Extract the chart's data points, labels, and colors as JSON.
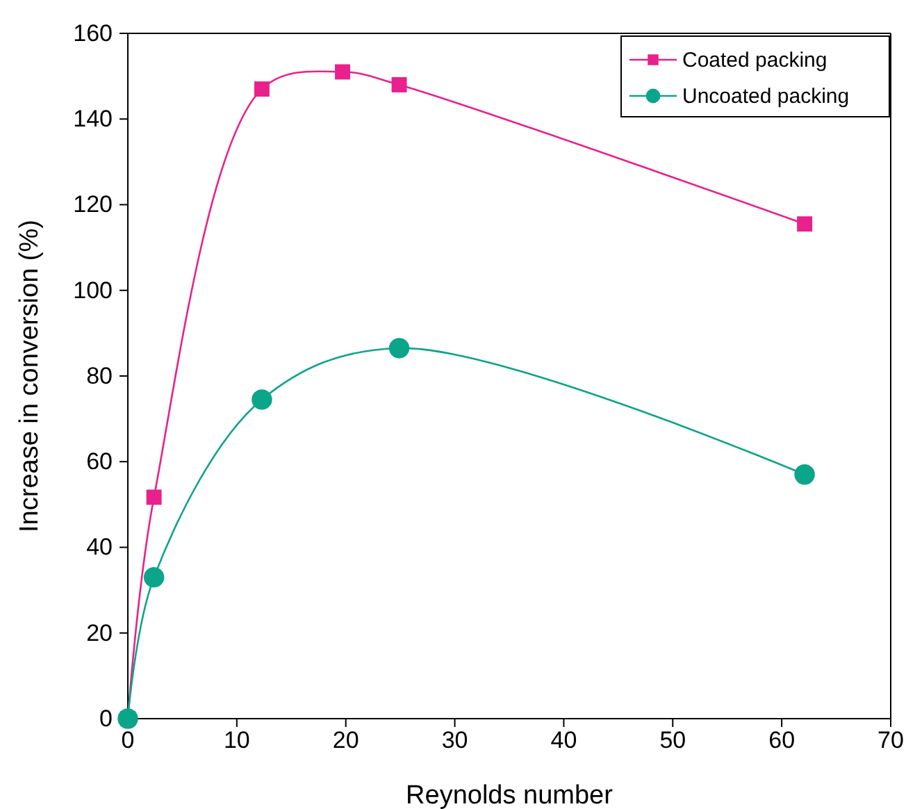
{
  "chart_data": {
    "type": "line",
    "xlabel": "Reynolds number",
    "ylabel": "Increase in conversion (%)",
    "xlim": [
      0,
      70
    ],
    "xticks": [
      0,
      10,
      20,
      30,
      40,
      50,
      60,
      70
    ],
    "ylim": [
      0,
      160
    ],
    "yticks": [
      0,
      20,
      40,
      60,
      80,
      100,
      120,
      140,
      160
    ],
    "grid": false,
    "legend": "top right",
    "line_style": "solid",
    "series": [
      {
        "name": "Coated packing",
        "color": "#e8218c",
        "marker": "square",
        "x": [
          0,
          2.4,
          12.3,
          19.7,
          24.9,
          62.1
        ],
        "values": [
          0,
          51.7,
          147,
          151,
          148,
          115.5
        ]
      },
      {
        "name": "Uncoated packing",
        "color": "#0ba58a",
        "marker": "circle",
        "x": [
          0,
          2.4,
          12.3,
          24.9,
          62.1
        ],
        "values": [
          0,
          33,
          74.5,
          86.5,
          57
        ]
      }
    ]
  }
}
